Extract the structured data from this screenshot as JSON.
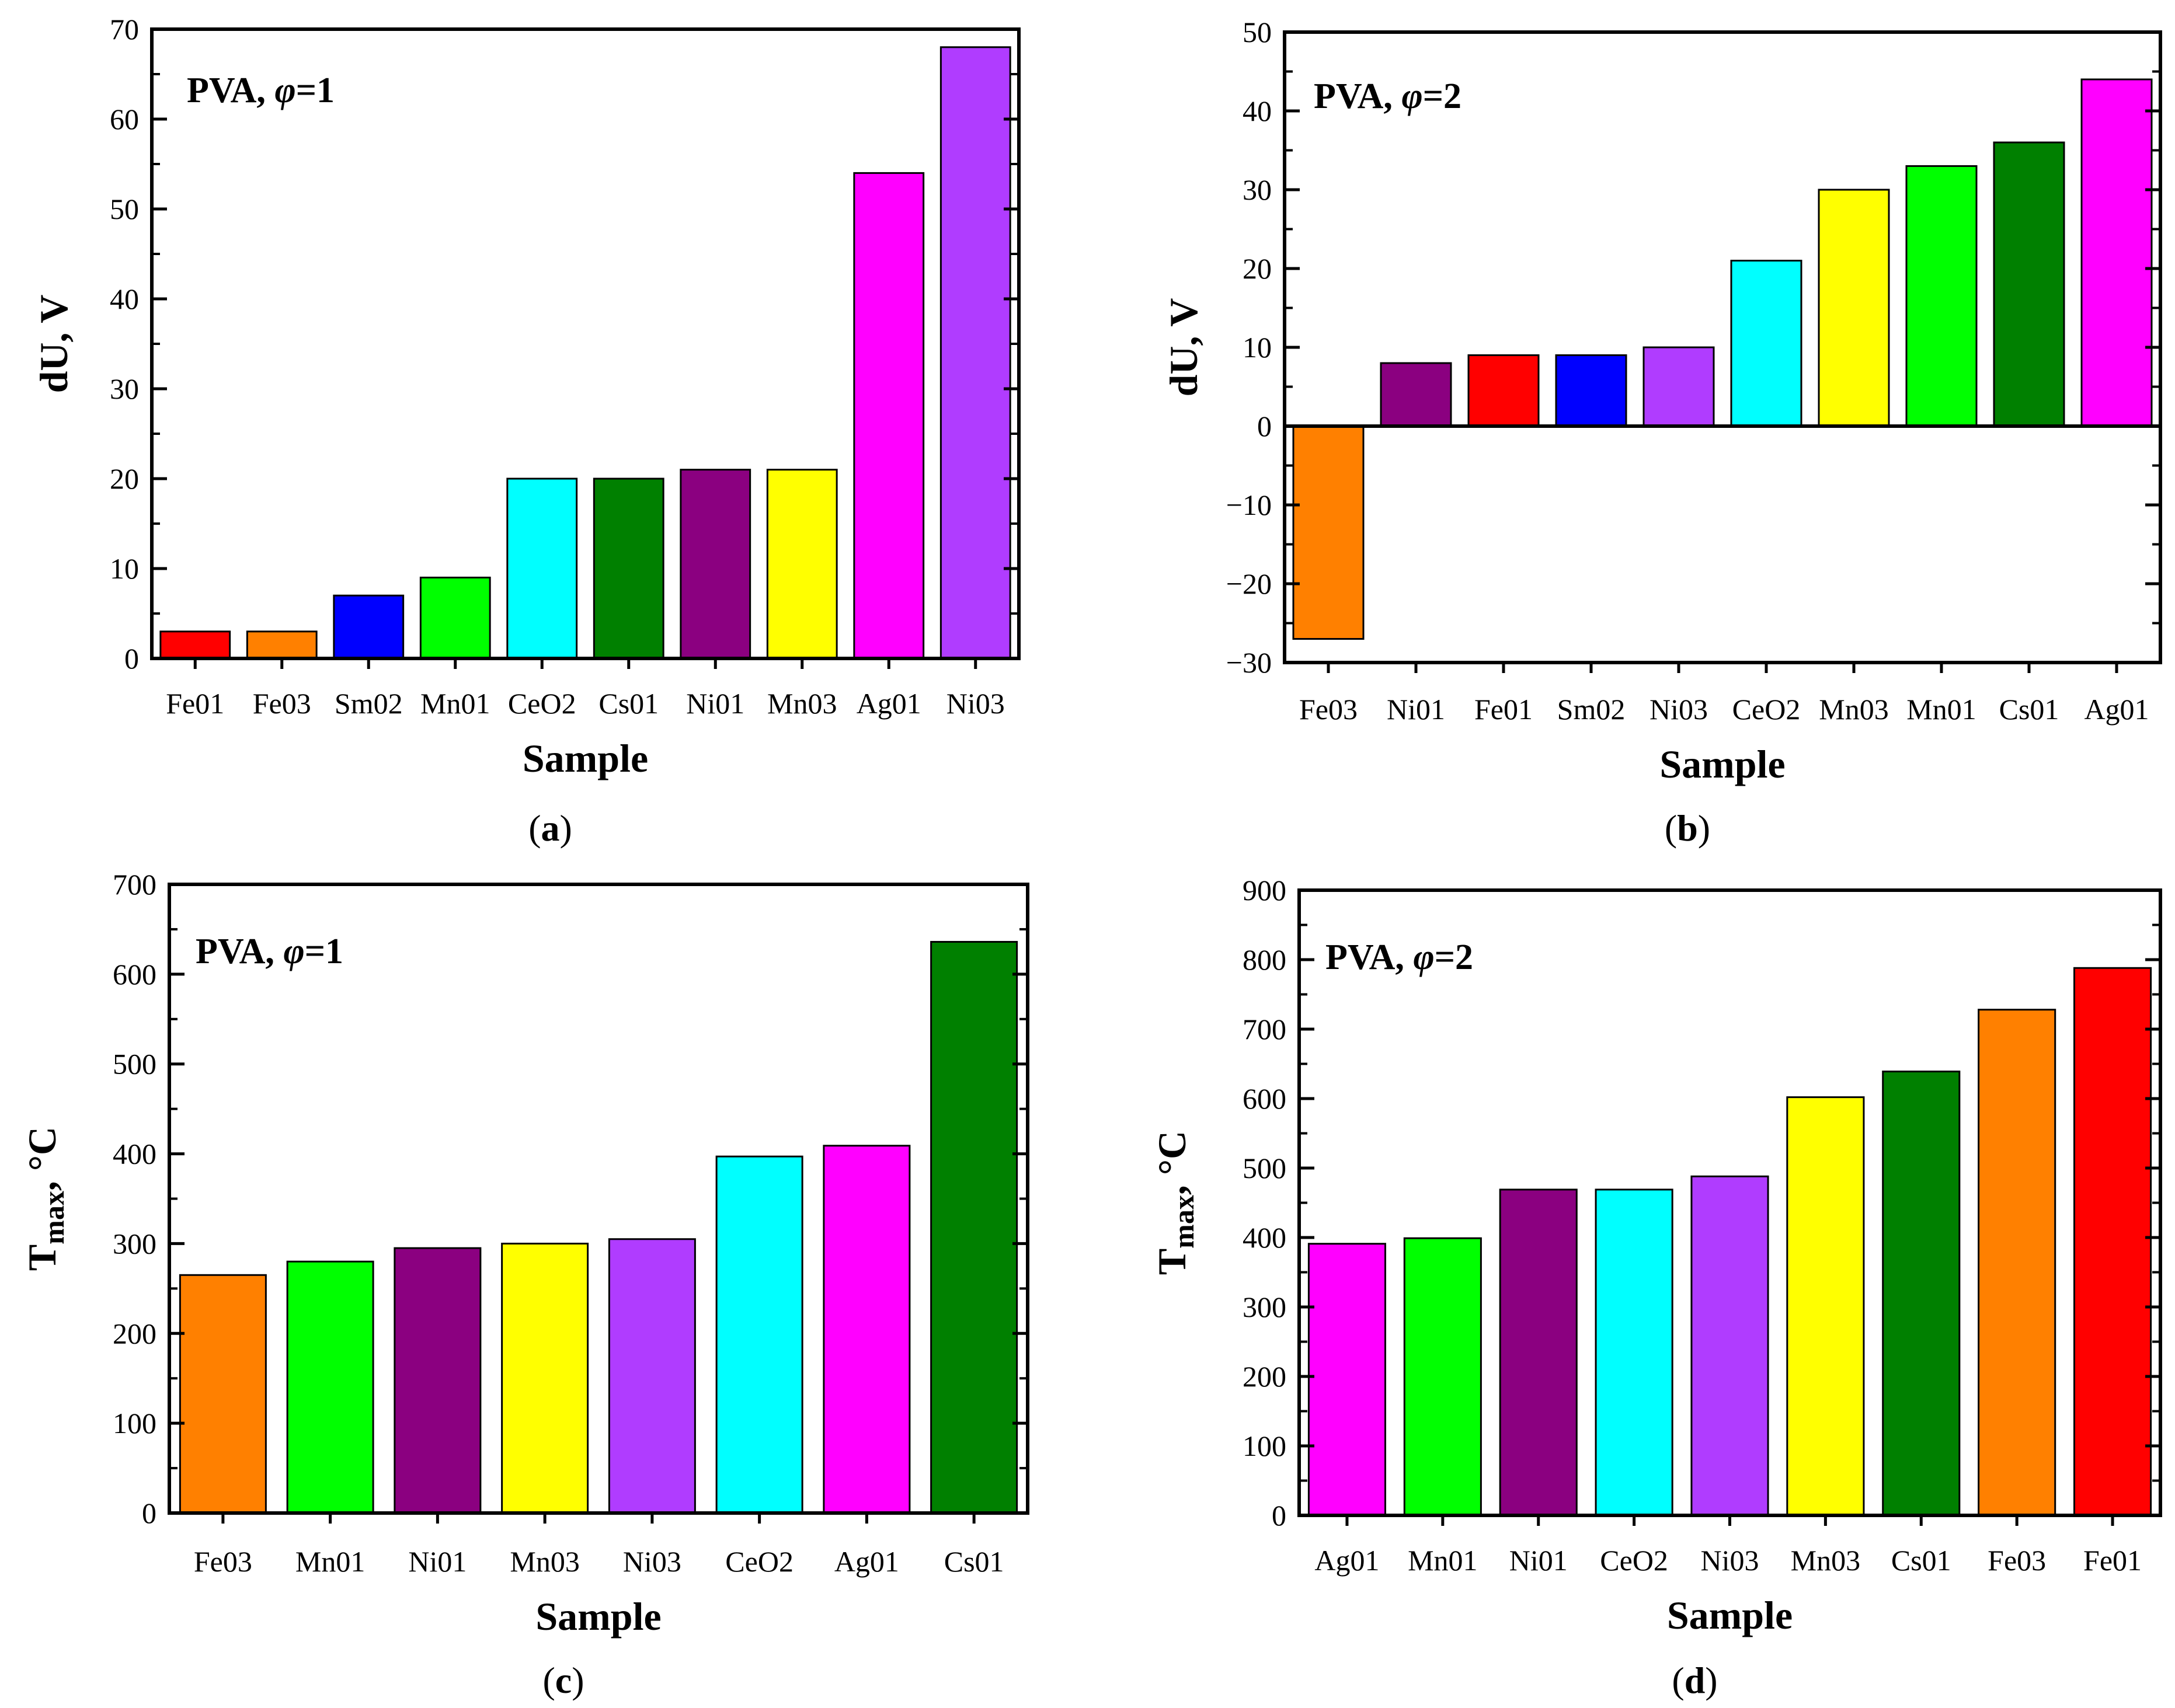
{
  "chart_data": [
    {
      "type": "bar",
      "panel_label": "a",
      "annotation": "PVA, ",
      "annotation_symbol": "φ",
      "annotation_value": "=1",
      "xlabel": "Sample",
      "ylabel": "dU, V",
      "ylim": [
        0,
        70
      ],
      "yticks": [
        0,
        10,
        20,
        30,
        40,
        50,
        60,
        70
      ],
      "categories": [
        "Fe01",
        "Fe03",
        "Sm02",
        "Mn01",
        "CeO2",
        "Cs01",
        "Ni01",
        "Mn03",
        "Ag01",
        "Ni03"
      ],
      "values": [
        3,
        3,
        7,
        9,
        20,
        20,
        21,
        21,
        54,
        68
      ],
      "colors": [
        "#ff0000",
        "#ff8000",
        "#0000ff",
        "#00ff00",
        "#00ffff",
        "#008000",
        "#8b0080",
        "#ffff00",
        "#ff00ff",
        "#b03cff"
      ]
    },
    {
      "type": "bar",
      "panel_label": "b",
      "annotation": "PVA, ",
      "annotation_symbol": "φ",
      "annotation_value": "=2",
      "xlabel": "Sample",
      "ylabel": "dU, V",
      "ylim": [
        -30,
        50
      ],
      "yticks": [
        -30,
        -20,
        -10,
        0,
        10,
        20,
        30,
        40,
        50
      ],
      "ytick_labels": [
        "−30",
        "−20",
        "−10",
        "0",
        "10",
        "20",
        "30",
        "40",
        "50"
      ],
      "categories": [
        "Fe03",
        "Ni01",
        "Fe01",
        "Sm02",
        "Ni03",
        "CeO2",
        "Mn03",
        "Mn01",
        "Cs01",
        "Ag01"
      ],
      "values": [
        -27,
        8,
        9,
        9,
        10,
        21,
        30,
        33,
        36,
        44
      ],
      "colors": [
        "#ff8000",
        "#8b0080",
        "#ff0000",
        "#0000ff",
        "#b03cff",
        "#00ffff",
        "#ffff00",
        "#00ff00",
        "#008000",
        "#ff00ff"
      ]
    },
    {
      "type": "bar",
      "panel_label": "c",
      "annotation": "PVA, ",
      "annotation_symbol": "φ",
      "annotation_value": "=1",
      "xlabel": "Sample",
      "ylabel_main": "T",
      "ylabel_sub": "max",
      "ylabel_tail": ", °C",
      "ylim": [
        0,
        700
      ],
      "yticks": [
        0,
        100,
        200,
        300,
        400,
        500,
        600,
        700
      ],
      "categories": [
        "Fe03",
        "Mn01",
        "Ni01",
        "Mn03",
        "Ni03",
        "CeO2",
        "Ag01",
        "Cs01"
      ],
      "values": [
        265,
        280,
        295,
        300,
        305,
        397,
        409,
        636
      ],
      "colors": [
        "#ff8000",
        "#00ff00",
        "#8b0080",
        "#ffff00",
        "#b03cff",
        "#00ffff",
        "#ff00ff",
        "#008000"
      ]
    },
    {
      "type": "bar",
      "panel_label": "d",
      "annotation": "PVA, ",
      "annotation_symbol": "φ",
      "annotation_value": "=2",
      "xlabel": "Sample",
      "ylabel_main": "T",
      "ylabel_sub": "max",
      "ylabel_tail": ", °C",
      "ylim": [
        0,
        900
      ],
      "yticks": [
        0,
        100,
        200,
        300,
        400,
        500,
        600,
        700,
        800,
        900
      ],
      "categories": [
        "Ag01",
        "Mn01",
        "Ni01",
        "CeO2",
        "Ni03",
        "Mn03",
        "Cs01",
        "Fe03",
        "Fe01"
      ],
      "values": [
        391,
        399,
        469,
        469,
        488,
        602,
        639,
        728,
        788
      ],
      "colors": [
        "#ff00ff",
        "#00ff00",
        "#8b0080",
        "#00ffff",
        "#b03cff",
        "#ffff00",
        "#008000",
        "#ff8000",
        "#ff0000"
      ]
    }
  ]
}
